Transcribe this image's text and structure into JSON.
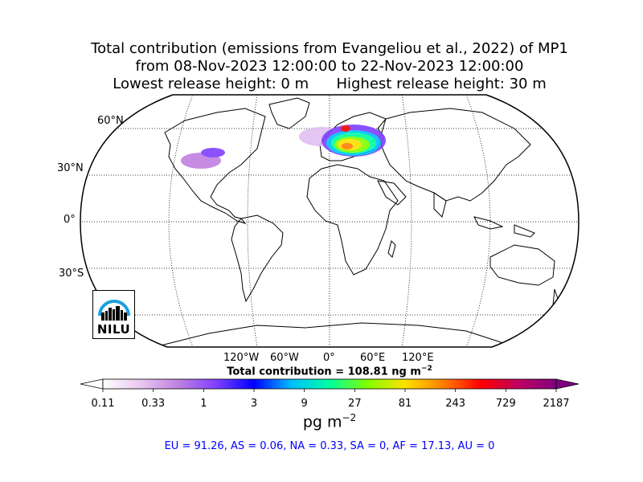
{
  "title": {
    "line1": "Total contribution (emissions from Evangeliou et al., 2022) of MP1",
    "line2": "from 08-Nov-2023 12:00:00 to 22-Nov-2023 12:00:00",
    "line3": "Lowest release height: 0 m      Highest release height: 30 m"
  },
  "map": {
    "projection": "robinson",
    "lat_labels": [
      "60°N",
      "30°N",
      "0°",
      "30°S"
    ],
    "lon_labels": [
      "120°W",
      "60°W",
      "0°",
      "60°E",
      "120°E"
    ],
    "logo_text": "NILU"
  },
  "total_contribution": "Total contribution = 108.81 ng m",
  "total_contribution_exp": "−2",
  "colorbar": {
    "ticks": [
      "0.11",
      "0.33",
      "1",
      "3",
      "9",
      "27",
      "81",
      "243",
      "729",
      "2187"
    ],
    "unit": "pg m",
    "unit_exp": "−2",
    "colors": [
      "#ffffff",
      "#e8c8f0",
      "#c080e0",
      "#8040ff",
      "#0000ff",
      "#00c0ff",
      "#00ffa0",
      "#80ff00",
      "#ffe000",
      "#ff8000",
      "#ff0000",
      "#c00060",
      "#800080"
    ]
  },
  "regions": "EU = 91.26,  AS = 0.06,  NA = 0.33,  SA = 0,  AF = 17.13,  AU = 0"
}
